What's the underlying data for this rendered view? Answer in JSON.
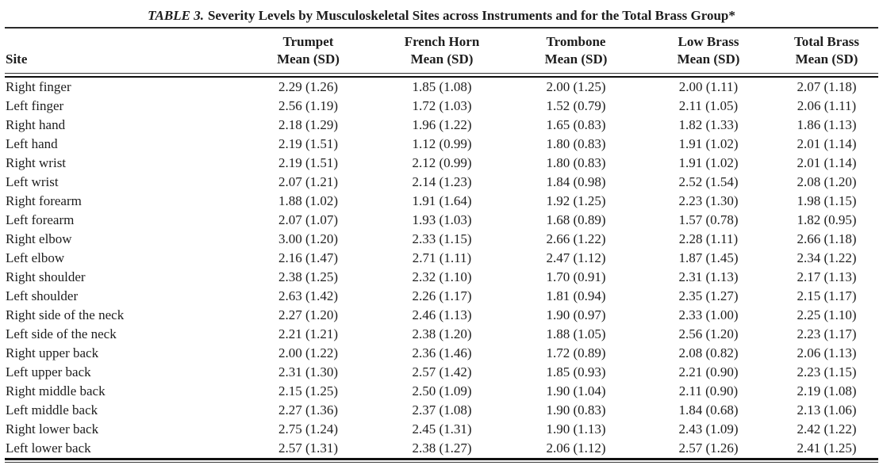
{
  "colors": {
    "background": "#ffffff",
    "text": "#1d1d1d",
    "rule": "#111111"
  },
  "chart_data": {
    "type": "table",
    "title_label": "TABLE 3.",
    "title": "Severity Levels by Musculoskeletal Sites across Instruments and for the Total Brass Group*",
    "columns": [
      {
        "label": "Site",
        "sub": ""
      },
      {
        "label": "Trumpet",
        "sub": "Mean (SD)"
      },
      {
        "label": "French Horn",
        "sub": "Mean (SD)"
      },
      {
        "label": "Trombone",
        "sub": "Mean (SD)"
      },
      {
        "label": "Low Brass",
        "sub": "Mean (SD)"
      },
      {
        "label": "Total Brass",
        "sub": "Mean (SD)"
      }
    ],
    "rows": [
      {
        "site": "Right finger",
        "values": [
          "2.29 (1.26)",
          "1.85 (1.08)",
          "2.00 (1.25)",
          "2.00 (1.11)",
          "2.07 (1.18)"
        ]
      },
      {
        "site": "Left finger",
        "values": [
          "2.56 (1.19)",
          "1.72 (1.03)",
          "1.52 (0.79)",
          "2.11 (1.05)",
          "2.06 (1.11)"
        ]
      },
      {
        "site": "Right hand",
        "values": [
          "2.18 (1.29)",
          "1.96 (1.22)",
          "1.65 (0.83)",
          "1.82 (1.33)",
          "1.86 (1.13)"
        ]
      },
      {
        "site": "Left hand",
        "values": [
          "2.19 (1.51)",
          "1.12 (0.99)",
          "1.80 (0.83)",
          "1.91 (1.02)",
          "2.01 (1.14)"
        ]
      },
      {
        "site": "Right wrist",
        "values": [
          "2.19 (1.51)",
          "2.12 (0.99)",
          "1.80 (0.83)",
          "1.91 (1.02)",
          "2.01 (1.14)"
        ]
      },
      {
        "site": "Left wrist",
        "values": [
          "2.07 (1.21)",
          "2.14 (1.23)",
          "1.84 (0.98)",
          "2.52 (1.54)",
          "2.08 (1.20)"
        ]
      },
      {
        "site": "Right forearm",
        "values": [
          "1.88 (1.02)",
          "1.91 (1.64)",
          "1.92 (1.25)",
          "2.23 (1.30)",
          "1.98 (1.15)"
        ]
      },
      {
        "site": "Left forearm",
        "values": [
          "2.07 (1.07)",
          "1.93 (1.03)",
          "1.68 (0.89)",
          "1.57 (0.78)",
          "1.82 (0.95)"
        ]
      },
      {
        "site": "Right elbow",
        "values": [
          "3.00 (1.20)",
          "2.33 (1.15)",
          "2.66 (1.22)",
          "2.28 (1.11)",
          "2.66 (1.18)"
        ]
      },
      {
        "site": "Left elbow",
        "values": [
          "2.16 (1.47)",
          "2.71 (1.11)",
          "2.47 (1.12)",
          "1.87 (1.45)",
          "2.34 (1.22)"
        ]
      },
      {
        "site": "Right shoulder",
        "values": [
          "2.38 (1.25)",
          "2.32 (1.10)",
          "1.70 (0.91)",
          "2.31 (1.13)",
          "2.17 (1.13)"
        ]
      },
      {
        "site": "Left shoulder",
        "values": [
          "2.63 (1.42)",
          "2.26 (1.17)",
          "1.81 (0.94)",
          "2.35 (1.27)",
          "2.15 (1.17)"
        ]
      },
      {
        "site": "Right side of the neck",
        "values": [
          "2.27 (1.20)",
          "2.46 (1.13)",
          "1.90 (0.97)",
          "2.33 (1.00)",
          "2.25 (1.10)"
        ]
      },
      {
        "site": "Left side of the neck",
        "values": [
          "2.21 (1.21)",
          "2.38 (1.20)",
          "1.88 (1.05)",
          "2.56 (1.20)",
          "2.23 (1.17)"
        ]
      },
      {
        "site": "Right upper back",
        "values": [
          "2.00 (1.22)",
          "2.36 (1.46)",
          "1.72 (0.89)",
          "2.08 (0.82)",
          "2.06 (1.13)"
        ]
      },
      {
        "site": "Left upper back",
        "values": [
          "2.31 (1.30)",
          "2.57 (1.42)",
          "1.85 (0.93)",
          "2.21 (0.90)",
          "2.23 (1.15)"
        ]
      },
      {
        "site": "Right middle back",
        "values": [
          "2.15 (1.25)",
          "2.50 (1.09)",
          "1.90 (1.04)",
          "2.11 (0.90)",
          "2.19 (1.08)"
        ]
      },
      {
        "site": "Left middle back",
        "values": [
          "2.27 (1.36)",
          "2.37 (1.08)",
          "1.90 (0.83)",
          "1.84 (0.68)",
          "2.13 (1.06)"
        ]
      },
      {
        "site": "Right lower back",
        "values": [
          "2.75 (1.24)",
          "2.45 (1.31)",
          "1.90 (1.13)",
          "2.43 (1.09)",
          "2.42 (1.22)"
        ]
      },
      {
        "site": "Left lower back",
        "values": [
          "2.57 (1.31)",
          "2.38 (1.27)",
          "2.06 (1.12)",
          "2.57 (1.26)",
          "2.41 (1.25)"
        ]
      }
    ]
  }
}
